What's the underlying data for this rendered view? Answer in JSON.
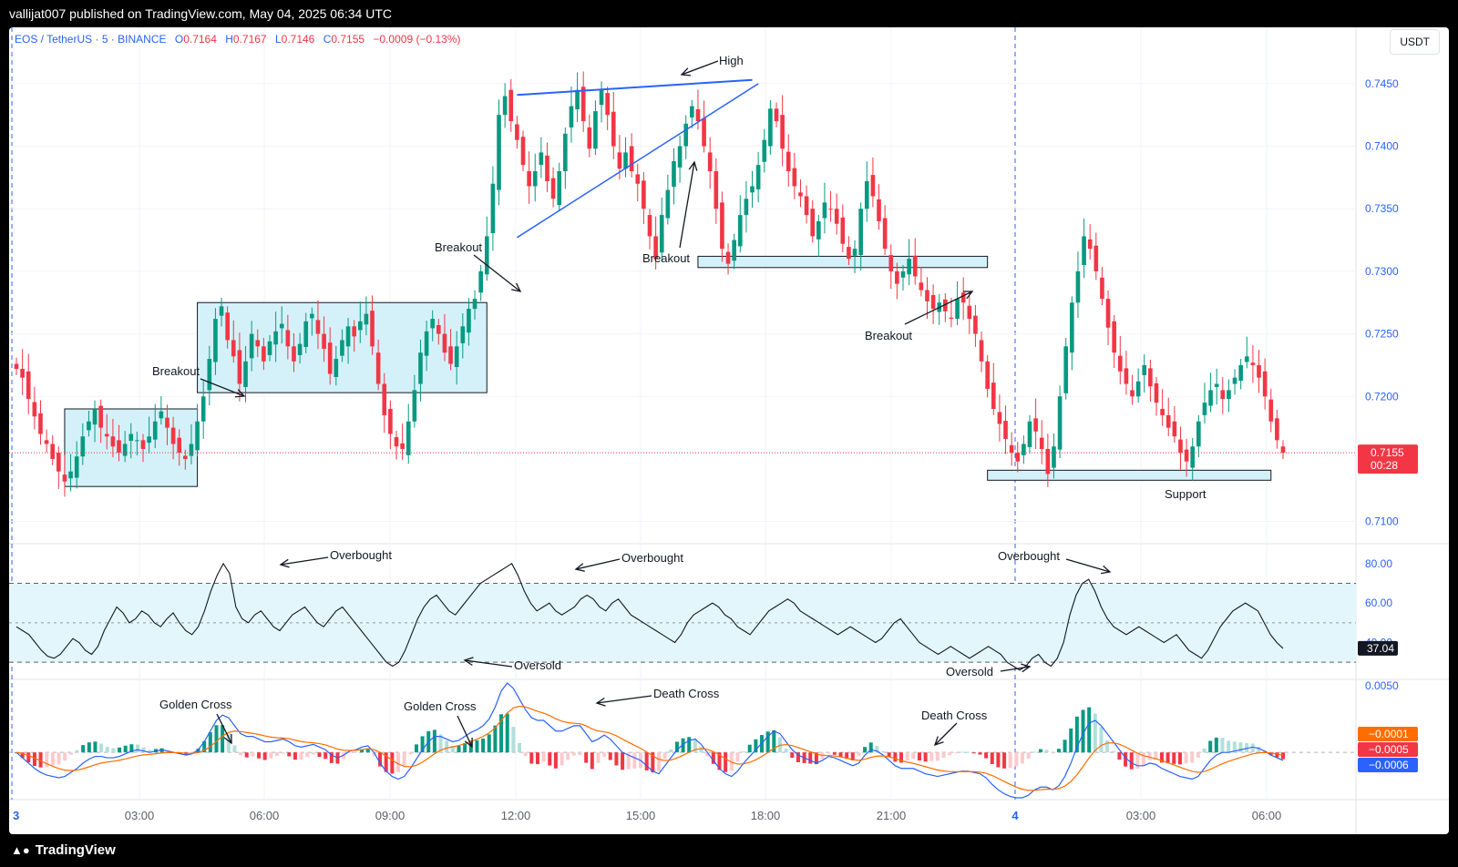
{
  "header": {
    "published": "vallijat007 published on TradingView.com, May 04, 2025 06:34 UTC"
  },
  "legend": {
    "symbol": "EOS / TetherUS · 5 · BINANCE",
    "o_label": "O",
    "o": "0.7164",
    "h_label": "H",
    "h": "0.7167",
    "l_label": "L",
    "l": "0.7146",
    "c_label": "C",
    "c": "0.7155",
    "change": "−0.0009 (−0.13%)"
  },
  "currency": "USDT",
  "footer": {
    "brand": "TradingView",
    "logo_icon": "tradingview-logo-icon"
  },
  "colors": {
    "up": "#089981",
    "down": "#f23645",
    "box_fill": "#d4f1f9",
    "blue_line": "#2962ff",
    "macd_line": "#2962ff",
    "signal_line": "#ff6d00",
    "price_tag": "#f23645"
  },
  "chart_data": [
    {
      "type": "candlestick",
      "pane": "price",
      "title": "EOS / TetherUS · 5 · BINANCE",
      "y_ticks": [
        "0.7450",
        "0.7400",
        "0.7350",
        "0.7300",
        "0.7250",
        "0.7200",
        "0.7100"
      ],
      "ylim": [
        0.7083,
        0.7479
      ],
      "last_price": "0.7155",
      "countdown": "00:28",
      "x_ticks": [
        "3",
        "03:00",
        "06:00",
        "09:00",
        "12:00",
        "15:00",
        "18:00",
        "21:00",
        "4",
        "03:00",
        "06:00"
      ],
      "session_break_at": "4",
      "close_path": [
        0.7222,
        0.7215,
        0.7198,
        0.7184,
        0.717,
        0.7162,
        0.715,
        0.714,
        0.7132,
        0.714,
        0.7152,
        0.7168,
        0.718,
        0.719,
        0.7175,
        0.7168,
        0.716,
        0.7155,
        0.7162,
        0.717,
        0.7165,
        0.7158,
        0.7168,
        0.718,
        0.7188,
        0.7175,
        0.7162,
        0.7155,
        0.715,
        0.7162,
        0.718,
        0.72,
        0.723,
        0.7262,
        0.7272,
        0.7245,
        0.7232,
        0.721,
        0.7228,
        0.725,
        0.724,
        0.7228,
        0.7244,
        0.7252,
        0.7258,
        0.724,
        0.7228,
        0.7242,
        0.726,
        0.7266,
        0.725,
        0.7238,
        0.7218,
        0.723,
        0.7245,
        0.7256,
        0.7248,
        0.726,
        0.7266,
        0.724,
        0.721,
        0.7185,
        0.717,
        0.716,
        0.7158,
        0.718,
        0.7205,
        0.7235,
        0.7252,
        0.7262,
        0.725,
        0.7235,
        0.7226,
        0.724,
        0.7256,
        0.727,
        0.7278,
        0.73,
        0.7328,
        0.737,
        0.7425,
        0.744,
        0.742,
        0.7405,
        0.7385,
        0.7368,
        0.738,
        0.7395,
        0.7372,
        0.7358,
        0.738,
        0.741,
        0.7432,
        0.7445,
        0.742,
        0.7398,
        0.7428,
        0.7445,
        0.7425,
        0.74,
        0.7382,
        0.7395,
        0.738,
        0.737,
        0.735,
        0.7328,
        0.731,
        0.7345,
        0.7365,
        0.7388,
        0.74,
        0.7418,
        0.7432,
        0.742,
        0.74,
        0.738,
        0.735,
        0.7318,
        0.7306,
        0.7325,
        0.7345,
        0.7358,
        0.7368,
        0.7385,
        0.7405,
        0.743,
        0.742,
        0.7398,
        0.738,
        0.7368,
        0.736,
        0.7345,
        0.7328,
        0.734,
        0.7355,
        0.735,
        0.7338,
        0.7322,
        0.731,
        0.7318,
        0.735,
        0.7372,
        0.736,
        0.734,
        0.7318,
        0.73,
        0.729,
        0.73,
        0.731,
        0.7296,
        0.7285,
        0.7276,
        0.727,
        0.7275,
        0.7268,
        0.7262,
        0.7278,
        0.7275,
        0.7262,
        0.725,
        0.7228,
        0.7206,
        0.719,
        0.7178,
        0.7166,
        0.7155,
        0.7148,
        0.7162,
        0.718,
        0.7172,
        0.7158,
        0.7138,
        0.716,
        0.72,
        0.724,
        0.7275,
        0.73,
        0.7328,
        0.7318,
        0.73,
        0.7278,
        0.7255,
        0.7235,
        0.722,
        0.721,
        0.72,
        0.7212,
        0.7225,
        0.7208,
        0.7195,
        0.7185,
        0.7175,
        0.7168,
        0.7155,
        0.7148,
        0.716,
        0.718,
        0.7195,
        0.7205,
        0.721,
        0.7198,
        0.7205,
        0.7215,
        0.7225,
        0.7232,
        0.7225,
        0.7215,
        0.72,
        0.718,
        0.7165,
        0.7155
      ],
      "annotations": [
        "High",
        "Breakout",
        "Breakout",
        "Breakout",
        "Breakout",
        "Support"
      ]
    },
    {
      "type": "line",
      "pane": "oscillator",
      "y_ticks": [
        "80.00",
        "60.00",
        "40.00"
      ],
      "ylim": [
        25,
        85
      ],
      "band": [
        70,
        30
      ],
      "midline": 50,
      "last_value": "37.04",
      "values": [
        48,
        46,
        44,
        40,
        36,
        33,
        32,
        34,
        38,
        42,
        40,
        36,
        34,
        38,
        46,
        52,
        58,
        55,
        50,
        52,
        56,
        54,
        50,
        48,
        52,
        55,
        50,
        46,
        44,
        48,
        56,
        66,
        74,
        80,
        75,
        58,
        52,
        50,
        54,
        56,
        52,
        48,
        46,
        50,
        54,
        56,
        58,
        54,
        50,
        48,
        52,
        56,
        58,
        54,
        50,
        46,
        42,
        38,
        34,
        30,
        28,
        30,
        36,
        44,
        52,
        58,
        62,
        64,
        60,
        56,
        54,
        58,
        62,
        66,
        70,
        72,
        74,
        76,
        78,
        80,
        74,
        66,
        60,
        56,
        58,
        60,
        56,
        54,
        56,
        58,
        62,
        64,
        62,
        58,
        56,
        60,
        62,
        58,
        54,
        52,
        50,
        48,
        46,
        44,
        42,
        40,
        44,
        50,
        54,
        56,
        58,
        60,
        58,
        54,
        52,
        48,
        46,
        44,
        48,
        52,
        56,
        58,
        60,
        62,
        60,
        56,
        54,
        52,
        50,
        48,
        46,
        44,
        46,
        48,
        46,
        44,
        42,
        40,
        42,
        46,
        50,
        52,
        48,
        44,
        40,
        38,
        36,
        34,
        36,
        38,
        36,
        34,
        32,
        34,
        36,
        38,
        36,
        34,
        30,
        28,
        26,
        28,
        32,
        34,
        30,
        28,
        32,
        40,
        54,
        64,
        70,
        72,
        66,
        58,
        52,
        48,
        46,
        44,
        46,
        48,
        46,
        44,
        42,
        40,
        42,
        44,
        40,
        36,
        34,
        32,
        36,
        42,
        48,
        52,
        56,
        58,
        60,
        58,
        56,
        50,
        44,
        40,
        37.04
      ],
      "annotations": [
        "Overbought",
        "Overbought",
        "Overbought",
        "Oversold",
        "Oversold"
      ]
    },
    {
      "type": "macd",
      "pane": "macd",
      "y_ticks": [
        "0.0050"
      ],
      "ylim": [
        -0.0034,
        0.0052
      ],
      "last_values": {
        "histogram": "−0.0001",
        "signal": "−0.0005",
        "macd": "−0.0006"
      },
      "macd": [
        0.0,
        -0.0004,
        -0.0008,
        -0.0012,
        -0.0015,
        -0.0017,
        -0.0018,
        -0.0019,
        -0.0018,
        -0.0015,
        -0.0012,
        -0.0008,
        -0.0005,
        -0.0003,
        -0.0003,
        -0.0004,
        -0.0004,
        -0.0003,
        -0.0001,
        0.0001,
        0.0002,
        0.0001,
        0.0,
        0.0001,
        0.0002,
        0.0001,
        0.0,
        -0.0001,
        -0.0002,
        -0.0001,
        0.0002,
        0.0008,
        0.0016,
        0.0024,
        0.0028,
        0.0026,
        0.002,
        0.0014,
        0.0012,
        0.0012,
        0.001,
        0.0008,
        0.0008,
        0.0009,
        0.001,
        0.0008,
        0.0005,
        0.0004,
        0.0005,
        0.0006,
        0.0004,
        0.0002,
        -0.0002,
        -0.0004,
        -0.0002,
        0.0001,
        0.0002,
        0.0004,
        0.0005,
        0.0,
        -0.0008,
        -0.0014,
        -0.0018,
        -0.002,
        -0.0018,
        -0.0012,
        -0.0005,
        0.0002,
        0.0008,
        0.0012,
        0.0012,
        0.001,
        0.0008,
        0.0009,
        0.0012,
        0.0015,
        0.0017,
        0.002,
        0.0025,
        0.0034,
        0.0046,
        0.0052,
        0.0048,
        0.004,
        0.0032,
        0.0026,
        0.0024,
        0.0024,
        0.002,
        0.0016,
        0.0016,
        0.0018,
        0.002,
        0.002,
        0.0014,
        0.0008,
        0.001,
        0.0013,
        0.001,
        0.0005,
        0.0,
        -0.0002,
        -0.0004,
        -0.0006,
        -0.001,
        -0.0014,
        -0.0016,
        -0.001,
        -0.0004,
        0.0002,
        0.0006,
        0.0009,
        0.001,
        0.0006,
        0.0,
        -0.0006,
        -0.0012,
        -0.0016,
        -0.0018,
        -0.0014,
        -0.0008,
        -0.0003,
        0.0002,
        0.0007,
        0.0012,
        0.0016,
        0.0014,
        0.0008,
        0.0002,
        -0.0002,
        -0.0004,
        -0.0006,
        -0.0008,
        -0.0006,
        -0.0003,
        -0.0004,
        -0.0006,
        -0.0008,
        -0.001,
        -0.0008,
        -0.0002,
        0.0002,
        0.0001,
        -0.0002,
        -0.0006,
        -0.001,
        -0.0012,
        -0.0012,
        -0.0012,
        -0.0014,
        -0.0016,
        -0.0017,
        -0.0018,
        -0.0017,
        -0.0016,
        -0.0015,
        -0.0014,
        -0.0014,
        -0.0015,
        -0.0016,
        -0.0019,
        -0.0024,
        -0.0028,
        -0.0031,
        -0.0033,
        -0.0034,
        -0.0034,
        -0.0032,
        -0.0028,
        -0.0026,
        -0.0026,
        -0.0028,
        -0.0025,
        -0.0018,
        -0.0008,
        0.0004,
        0.0014,
        0.0022,
        0.0024,
        0.002,
        0.0014,
        0.0008,
        0.0002,
        -0.0004,
        -0.0008,
        -0.001,
        -0.001,
        -0.0008,
        -0.0009,
        -0.0012,
        -0.0014,
        -0.0016,
        -0.0018,
        -0.0019,
        -0.002,
        -0.0018,
        -0.0012,
        -0.0006,
        -0.0002,
        0.0,
        0.0,
        0.0001,
        0.0002,
        0.0003,
        0.0004,
        0.0003,
        0.0001,
        -0.0002,
        -0.0004,
        -0.0006
      ],
      "annotations": [
        "Golden Cross",
        "Golden Cross",
        "Death Cross",
        "Death Cross"
      ]
    }
  ]
}
